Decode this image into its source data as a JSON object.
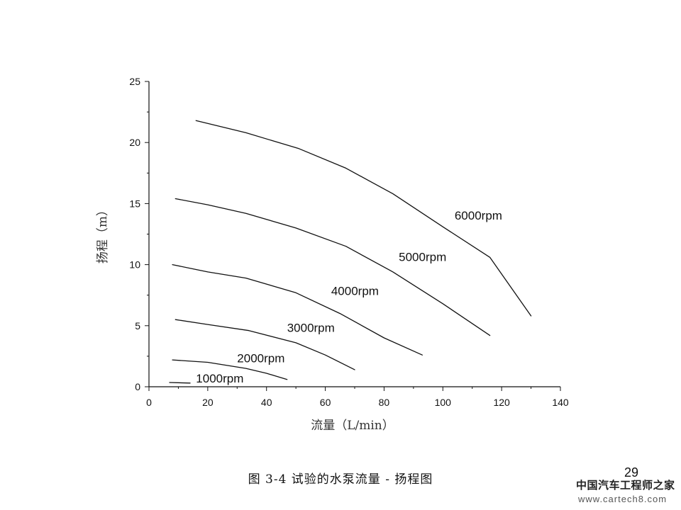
{
  "chart_data": {
    "type": "line",
    "xlabel": "流量（L/min）",
    "ylabel": "扬程（m）",
    "xlim": [
      0,
      140
    ],
    "ylim": [
      0,
      25
    ],
    "xticks": [
      0,
      20,
      40,
      60,
      80,
      100,
      120,
      140
    ],
    "yticks": [
      0,
      5,
      10,
      15,
      20,
      25
    ],
    "grid": false,
    "legend": "none",
    "line_color": "#111111",
    "series": [
      {
        "name": "1000rpm",
        "x": [
          7,
          14
        ],
        "y": [
          0.35,
          0.3
        ]
      },
      {
        "name": "2000rpm",
        "x": [
          8,
          20,
          33,
          40,
          47
        ],
        "y": [
          2.2,
          2.0,
          1.5,
          1.1,
          0.6
        ]
      },
      {
        "name": "3000rpm",
        "x": [
          9,
          20,
          34,
          50,
          60,
          70
        ],
        "y": [
          5.5,
          5.1,
          4.6,
          3.6,
          2.6,
          1.4
        ]
      },
      {
        "name": "4000rpm",
        "x": [
          8,
          20,
          33,
          50,
          65,
          80,
          93
        ],
        "y": [
          10.0,
          9.4,
          8.9,
          7.7,
          6.0,
          4.0,
          2.6
        ]
      },
      {
        "name": "5000rpm",
        "x": [
          9,
          20,
          33,
          50,
          67,
          83,
          100,
          116
        ],
        "y": [
          15.4,
          14.9,
          14.2,
          13.0,
          11.5,
          9.4,
          6.8,
          4.2
        ]
      },
      {
        "name": "6000rpm",
        "x": [
          16,
          33,
          51,
          67,
          83,
          100,
          116,
          130
        ],
        "y": [
          21.8,
          20.8,
          19.5,
          17.9,
          15.8,
          13.1,
          10.6,
          5.8
        ]
      }
    ],
    "curve_labels": [
      {
        "text": "1000rpm",
        "x": 16,
        "y": 0.35
      },
      {
        "text": "2000rpm",
        "x": 30,
        "y": 2.0
      },
      {
        "text": "3000rpm",
        "x": 47,
        "y": 4.5
      },
      {
        "text": "4000rpm",
        "x": 62,
        "y": 7.5
      },
      {
        "text": "5000rpm",
        "x": 85,
        "y": 10.3
      },
      {
        "text": "6000rpm",
        "x": 104,
        "y": 13.7
      }
    ]
  },
  "caption": "图 3-4  试验的水泵流量 - 扬程图",
  "page_number": "29",
  "watermark": {
    "title": "中国汽车工程师之家",
    "url": "www.cartech8.com"
  }
}
